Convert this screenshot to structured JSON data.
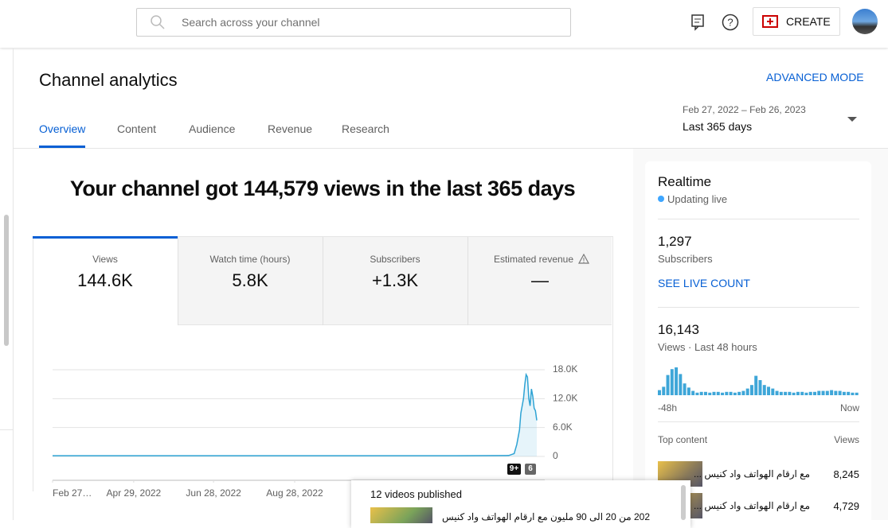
{
  "header": {
    "search_placeholder": "Search across your channel",
    "create": "CREATE"
  },
  "page": {
    "title": "Channel analytics",
    "advanced_mode": "ADVANCED MODE",
    "tabs": [
      "Overview",
      "Content",
      "Audience",
      "Revenue",
      "Research"
    ],
    "date_range": "Feb 27, 2022 – Feb 26, 2023",
    "period": "Last 365 days"
  },
  "headline": "Your channel got 144,579 views in the last 365 days",
  "metrics": [
    {
      "label": "Views",
      "value": "144.6K"
    },
    {
      "label": "Watch time (hours)",
      "value": "5.8K"
    },
    {
      "label": "Subscribers",
      "value": "+1.3K"
    },
    {
      "label": "Estimated revenue",
      "value": "—"
    }
  ],
  "chart_data": [
    {
      "type": "line",
      "color": "#2ea3d4",
      "x": [
        "2022-02-27",
        "2022-04-29",
        "2022-06-28",
        "2022-08-28",
        "2022-10-28",
        "2022-12-28",
        "2023-02-05",
        "2023-02-09",
        "2023-02-11",
        "2023-02-13",
        "2023-02-14",
        "2023-02-16",
        "2023-02-17",
        "2023-02-18",
        "2023-02-19",
        "2023-02-20",
        "2023-02-21",
        "2023-02-22",
        "2023-02-23",
        "2023-02-24",
        "2023-02-25",
        "2023-02-26"
      ],
      "series": [
        {
          "name": "Views",
          "color": "#2ea3d4",
          "values": [
            150,
            150,
            150,
            150,
            150,
            150,
            200,
            600,
            2500,
            5500,
            9000,
            12000,
            15000,
            17000,
            16500,
            12000,
            10500,
            14000,
            12500,
            10000,
            9500,
            7500
          ]
        }
      ],
      "xlim": [
        "2022-02-27",
        "2023-02-26"
      ],
      "xticks": [
        {
          "value": "2022-02-27",
          "label": "Feb 27…"
        },
        {
          "value": "2022-04-29",
          "label": "Apr 29, 2022"
        },
        {
          "value": "2022-06-28",
          "label": "Jun 28, 2022"
        },
        {
          "value": "2022-08-28",
          "label": "Aug 28, 2022"
        }
      ],
      "ylim": [
        0,
        18000
      ],
      "yticks": [
        0,
        {
          "value": 6000,
          "label": "6.0K"
        },
        {
          "value": 12000,
          "label": "12.0K"
        },
        {
          "value": 18000,
          "label": "18.0K"
        }
      ],
      "grid": true,
      "annotations": [
        "9+",
        "6"
      ]
    },
    {
      "type": "bar",
      "color": "#3ea6d8",
      "categories": [
        "-48h",
        null,
        null,
        null,
        null,
        null,
        null,
        null,
        null,
        null,
        null,
        null,
        null,
        null,
        null,
        null,
        null,
        null,
        null,
        null,
        null,
        null,
        null,
        null,
        null,
        null,
        null,
        null,
        null,
        null,
        null,
        null,
        null,
        null,
        null,
        null,
        null,
        null,
        null,
        null,
        null,
        null,
        null,
        null,
        null,
        null,
        null,
        "Now"
      ],
      "values": [
        260,
        430,
        1030,
        1330,
        1420,
        1080,
        600,
        390,
        220,
        130,
        170,
        170,
        130,
        170,
        170,
        130,
        170,
        170,
        130,
        170,
        220,
        340,
        520,
        990,
        770,
        520,
        430,
        340,
        220,
        170,
        170,
        170,
        130,
        170,
        170,
        130,
        170,
        170,
        220,
        220,
        220,
        260,
        220,
        220,
        170,
        170,
        130,
        130
      ]
    }
  ],
  "realtime": {
    "title": "Realtime",
    "status": "Updating live",
    "subscribers": "1,297",
    "subscribers_label": "Subscribers",
    "live_count": "SEE LIVE COUNT",
    "views": "16,143",
    "views_label": "Views · Last 48 hours",
    "top_content": {
      "title": "Top content",
      "views_header": "Views",
      "items": [
        {
          "title": "مع ارقام الهواتف واد كنيس ...",
          "views": "8,245"
        },
        {
          "title": "مع ارقام الهواتف واد كنيس ...",
          "views": "4,729"
        }
      ]
    }
  },
  "popup": {
    "title": "12 videos published",
    "item": "202 من 20 الى 90 مليون مع ارقام الهواتف واد كنيس"
  }
}
